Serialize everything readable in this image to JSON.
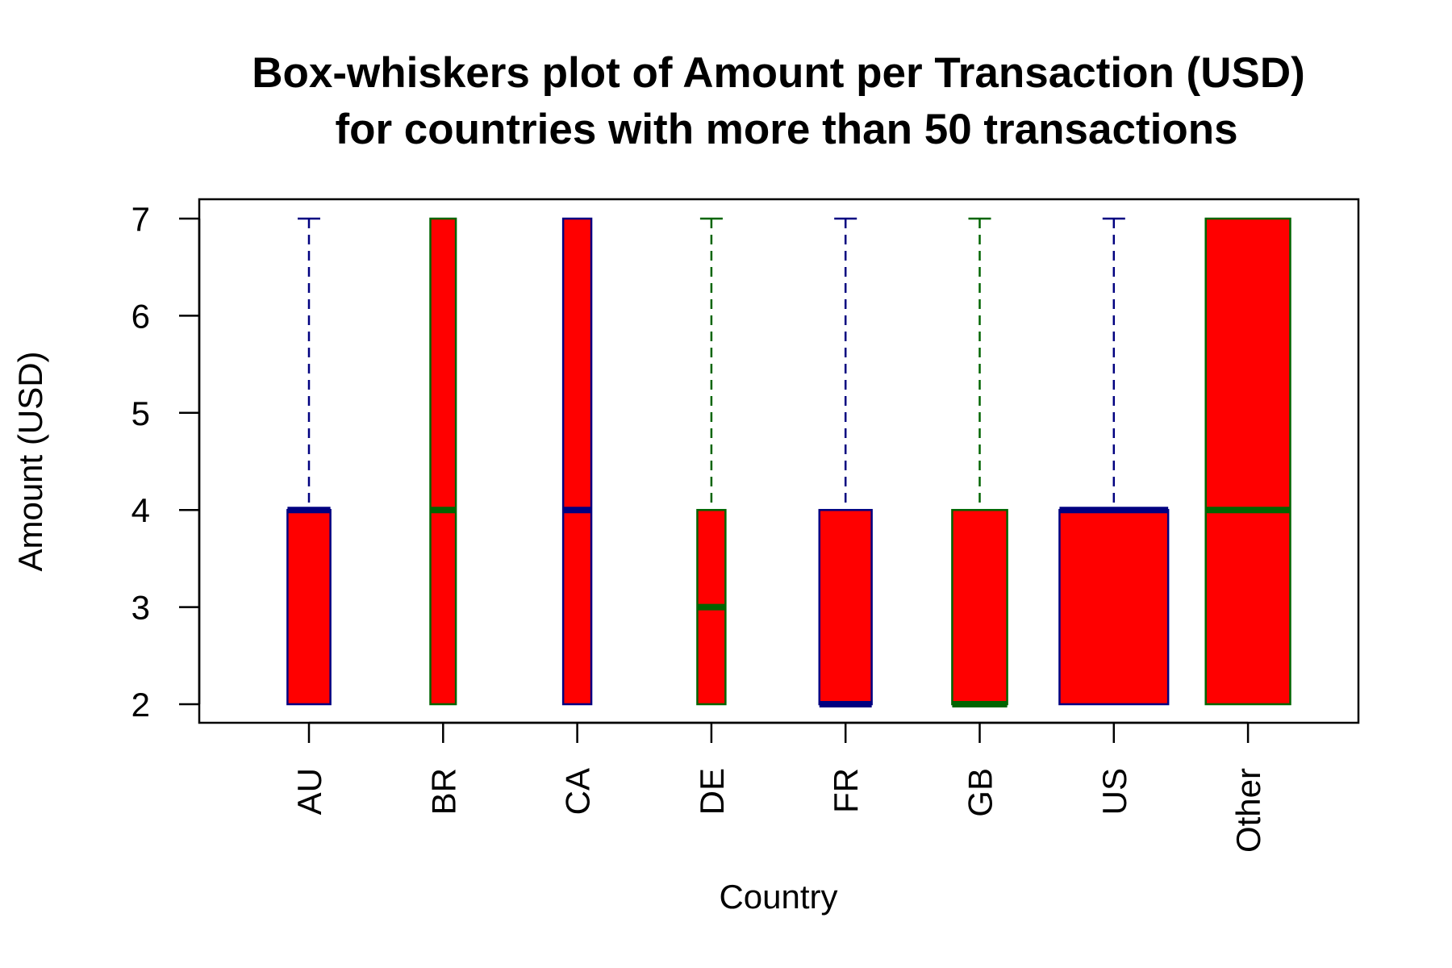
{
  "chart_data": {
    "type": "box",
    "title": [
      "Box-whiskers plot of Amount per Transaction (USD)",
      "for countries with more than 50 transactions"
    ],
    "xlabel": "Country",
    "ylabel": "Amount (USD)",
    "ylim": [
      1.8,
      7.2
    ],
    "yticks": [
      2,
      3,
      4,
      5,
      6,
      7
    ],
    "categories": [
      "AU",
      "BR",
      "CA",
      "DE",
      "FR",
      "GB",
      "US",
      "Other"
    ],
    "boxes": [
      {
        "category": "AU",
        "min": 2,
        "q1": 2,
        "median": 4,
        "q3": 4,
        "max": 7,
        "width": 0.32,
        "border": "#000080"
      },
      {
        "category": "BR",
        "min": 2,
        "q1": 2,
        "median": 4,
        "q3": 7,
        "max": 7,
        "width": 0.19,
        "border": "#006400"
      },
      {
        "category": "CA",
        "min": 2,
        "q1": 2,
        "median": 4,
        "q3": 7,
        "max": 7,
        "width": 0.21,
        "border": "#000080"
      },
      {
        "category": "DE",
        "min": 2,
        "q1": 2,
        "median": 3,
        "q3": 4,
        "max": 7,
        "width": 0.21,
        "border": "#006400"
      },
      {
        "category": "FR",
        "min": 2,
        "q1": 2,
        "median": 2,
        "q3": 4,
        "max": 7,
        "width": 0.39,
        "border": "#000080"
      },
      {
        "category": "GB",
        "min": 2,
        "q1": 2,
        "median": 2,
        "q3": 4,
        "max": 7,
        "width": 0.41,
        "border": "#006400"
      },
      {
        "category": "US",
        "min": 2,
        "q1": 2,
        "median": 4,
        "q3": 4,
        "max": 7,
        "width": 0.81,
        "border": "#000080"
      },
      {
        "category": "Other",
        "min": 2,
        "q1": 2,
        "median": 4,
        "q3": 7,
        "max": 7,
        "width": 0.63,
        "border": "#006400"
      }
    ],
    "box_fill": "#ff0000",
    "grid": false
  }
}
